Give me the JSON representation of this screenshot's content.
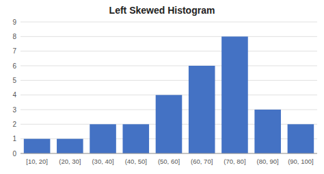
{
  "chart_data": {
    "type": "bar",
    "title": "Left Skewed Histogram",
    "categories": [
      "[10, 20]",
      "(20, 30]",
      "(30, 40]",
      "(40, 50]",
      "(50, 60]",
      "(60, 70]",
      "(70, 80]",
      "(80, 90]",
      "(90, 100]"
    ],
    "values": [
      1,
      1,
      2,
      2,
      4,
      6,
      8,
      3,
      2
    ],
    "color": "#4472C4",
    "ylim": [
      0,
      9
    ],
    "yticks": [
      0,
      1,
      2,
      3,
      4,
      5,
      6,
      7,
      8,
      9
    ],
    "grid": true
  }
}
